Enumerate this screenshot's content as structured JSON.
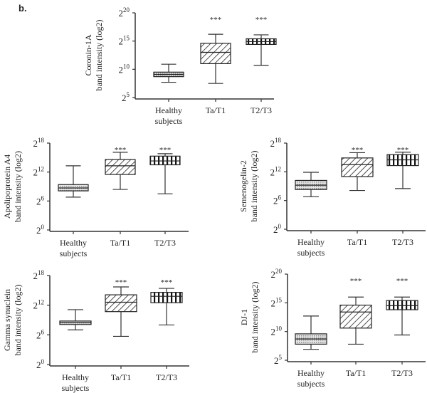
{
  "panel_label": "b.",
  "chart_data": [
    {
      "type": "box",
      "ylabel_lines": [
        "Coronin-1A",
        "band intensity  (log2)"
      ],
      "y_scale": "log2",
      "ylim_exponent": [
        5,
        20
      ],
      "yticks": [
        {
          "base": "2",
          "exp": "20",
          "value": 20
        },
        {
          "base": "2",
          "exp": "15",
          "value": 15
        },
        {
          "base": "2",
          "exp": "10",
          "value": 10
        },
        {
          "base": "2",
          "exp": "5",
          "value": 5
        }
      ],
      "categories": [
        [
          "Healthy",
          "subjects"
        ],
        [
          "Ta/T1"
        ],
        [
          "T2/T3"
        ]
      ],
      "boxes_log2": [
        {
          "min": 7.7,
          "q1": 8.7,
          "median": 9.1,
          "q3": 9.5,
          "max": 10.9,
          "significance": ""
        },
        {
          "min": 7.5,
          "q1": 11.0,
          "median": 13.0,
          "q3": 14.6,
          "max": 16.2,
          "significance": "***"
        },
        {
          "min": 10.7,
          "q1": 14.4,
          "median": 14.9,
          "q3": 15.4,
          "max": 16.1,
          "significance": "***"
        }
      ],
      "grid": false
    },
    {
      "type": "box",
      "ylabel_lines": [
        "Apolipoprotein  A4",
        "band intensity  (log2)"
      ],
      "y_scale": "log2",
      "ylim_exponent": [
        0,
        18
      ],
      "yticks": [
        {
          "base": "2",
          "exp": "18",
          "value": 18
        },
        {
          "base": "2",
          "exp": "12",
          "value": 12
        },
        {
          "base": "2",
          "exp": "6",
          "value": 6
        },
        {
          "base": "2",
          "exp": "0",
          "value": 0
        }
      ],
      "categories": [
        [
          "Healthy",
          "subjects"
        ],
        [
          "Ta/T1"
        ],
        [
          "T2/T3"
        ]
      ],
      "boxes_log2": [
        {
          "min": 6.8,
          "q1": 8.1,
          "median": 8.7,
          "q3": 9.4,
          "max": 13.3,
          "significance": ""
        },
        {
          "min": 8.4,
          "q1": 11.5,
          "median": 13.3,
          "q3": 14.6,
          "max": 16.1,
          "significance": "***"
        },
        {
          "min": 7.5,
          "q1": 13.5,
          "median": 14.3,
          "q3": 15.3,
          "max": 15.8,
          "significance": "***"
        }
      ],
      "grid": false
    },
    {
      "type": "box",
      "ylabel_lines": [
        "Semenogelin-2",
        "band intensity  (log2)"
      ],
      "y_scale": "log2",
      "ylim_exponent": [
        0,
        18
      ],
      "yticks": [
        {
          "base": "2",
          "exp": "18",
          "value": 18
        },
        {
          "base": "2",
          "exp": "12",
          "value": 12
        },
        {
          "base": "2",
          "exp": "6",
          "value": 6
        },
        {
          "base": "2",
          "exp": "0",
          "value": 0
        }
      ],
      "categories": [
        [
          "Healthy",
          "subjects"
        ],
        [
          "Ta/T1"
        ],
        [
          "T2/T3"
        ]
      ],
      "boxes_log2": [
        {
          "min": 6.8,
          "q1": 8.3,
          "median": 9.2,
          "q3": 10.2,
          "max": 11.9,
          "significance": ""
        },
        {
          "min": 8.1,
          "q1": 11.0,
          "median": 13.5,
          "q3": 14.9,
          "max": 16.0,
          "significance": "***"
        },
        {
          "min": 8.5,
          "q1": 13.3,
          "median": 14.5,
          "q3": 15.6,
          "max": 16.1,
          "significance": "***"
        }
      ],
      "grid": false
    },
    {
      "type": "box",
      "ylabel_lines": [
        "Gamma  synuclein",
        "band intensity  (log2)"
      ],
      "y_scale": "log2",
      "ylim_exponent": [
        0,
        18
      ],
      "yticks": [
        {
          "base": "2",
          "exp": "18",
          "value": 18
        },
        {
          "base": "2",
          "exp": "12",
          "value": 12
        },
        {
          "base": "2",
          "exp": "6",
          "value": 6
        },
        {
          "base": "2",
          "exp": "0",
          "value": 0
        }
      ],
      "categories": [
        [
          "Healthy",
          "subjects"
        ],
        [
          "Ta/T1"
        ],
        [
          "T2/T3"
        ]
      ],
      "boxes_log2": [
        {
          "min": 7.0,
          "q1": 8.1,
          "median": 8.5,
          "q3": 8.8,
          "max": 11.1,
          "significance": ""
        },
        {
          "min": 5.7,
          "q1": 10.7,
          "median": 12.6,
          "q3": 14.1,
          "max": 15.7,
          "significance": "***"
        },
        {
          "min": 8.0,
          "q1": 12.5,
          "median": 13.8,
          "q3": 14.6,
          "max": 15.4,
          "significance": "***"
        }
      ],
      "grid": false
    },
    {
      "type": "box",
      "ylabel_lines": [
        "DJ-1",
        "band intensity  (log2)"
      ],
      "y_scale": "log2",
      "ylim_exponent": [
        5,
        20
      ],
      "yticks": [
        {
          "base": "2",
          "exp": "20",
          "value": 20
        },
        {
          "base": "2",
          "exp": "15",
          "value": 15
        },
        {
          "base": "2",
          "exp": "10",
          "value": 10
        },
        {
          "base": "2",
          "exp": "5",
          "value": 5
        }
      ],
      "categories": [
        [
          "Healthy",
          "subjects"
        ],
        [
          "Ta/T1"
        ],
        [
          "T2/T3"
        ]
      ],
      "boxes_log2": [
        {
          "min": 6.9,
          "q1": 7.8,
          "median": 8.7,
          "q3": 9.6,
          "max": 12.7,
          "significance": ""
        },
        {
          "min": 7.8,
          "q1": 10.6,
          "median": 13.4,
          "q3": 14.6,
          "max": 16.0,
          "significance": "***"
        },
        {
          "min": 9.4,
          "q1": 13.8,
          "median": 14.5,
          "q3": 15.4,
          "max": 16.0,
          "significance": "***"
        }
      ],
      "grid": false
    }
  ],
  "box_fill_patterns": [
    "dotted-gray",
    "diagonal-hatch",
    "vertical-stripes"
  ],
  "colors": {
    "line": "#333333",
    "dotted_fill": "#bdbdbd"
  }
}
